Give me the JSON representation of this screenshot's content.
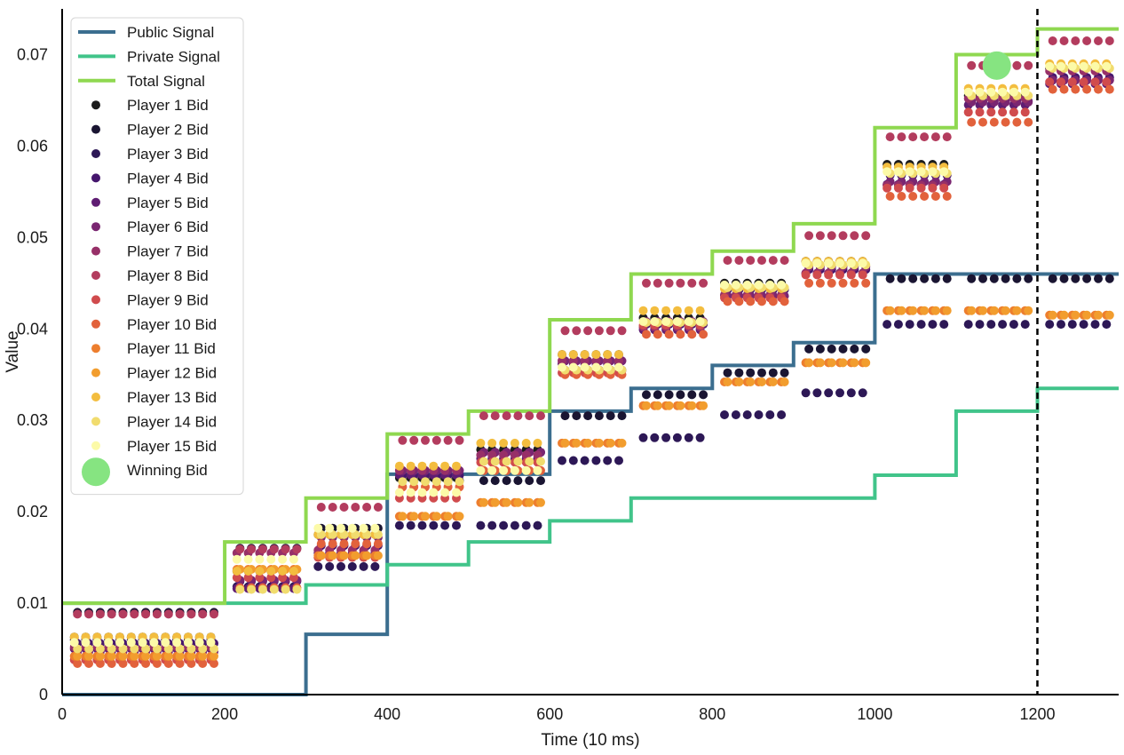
{
  "chart_data": {
    "type": "line",
    "title": "",
    "xlabel": "Time (10 ms)",
    "ylabel": "Value",
    "xlim": [
      0,
      1300
    ],
    "ylim": [
      0,
      0.075
    ],
    "xticks": [
      "0",
      "200",
      "400",
      "600",
      "800",
      "1000",
      "1200"
    ],
    "yticks": [
      "0",
      "0.01",
      "0.02",
      "0.03",
      "0.04",
      "0.05",
      "0.06",
      "0.07"
    ],
    "grid": false,
    "legend_position": "top-left",
    "vline": {
      "x": 1200,
      "style": "dashed",
      "color": "#000000"
    },
    "step_series": [
      {
        "name": "Public Signal",
        "color": "#3b6e8f",
        "x": [
          0,
          100,
          200,
          300,
          400,
          500,
          600,
          700,
          800,
          900,
          1000,
          1100,
          1200,
          1300
        ],
        "y": [
          0,
          0,
          0,
          0.0066,
          0.0241,
          0.0241,
          0.031,
          0.0335,
          0.036,
          0.0385,
          0.046,
          0.046,
          0.046,
          0.046
        ]
      },
      {
        "name": "Private Signal",
        "color": "#41c48a",
        "x": [
          0,
          100,
          200,
          300,
          400,
          500,
          600,
          700,
          800,
          900,
          1000,
          1100,
          1200,
          1300
        ],
        "y": [
          0.01,
          0.01,
          0.01,
          0.012,
          0.0142,
          0.0167,
          0.019,
          0.0215,
          0.0215,
          0.0215,
          0.024,
          0.031,
          0.0335,
          0.0335
        ]
      },
      {
        "name": "Total Signal",
        "color": "#8fd850",
        "x": [
          0,
          100,
          200,
          300,
          400,
          500,
          600,
          700,
          800,
          900,
          1000,
          1100,
          1200,
          1300
        ],
        "y": [
          0.01,
          0.01,
          0.0167,
          0.0215,
          0.0285,
          0.031,
          0.041,
          0.046,
          0.0485,
          0.0515,
          0.062,
          0.07,
          0.0728,
          0.0728
        ]
      }
    ],
    "scatter_series": [
      {
        "name": "Player 1 Bid",
        "color": "#1c1c1c"
      },
      {
        "name": "Player 2 Bid",
        "color": "#1a1532"
      },
      {
        "name": "Player 3 Bid",
        "color": "#2d1856"
      },
      {
        "name": "Player 4 Bid",
        "color": "#45166d"
      },
      {
        "name": "Player 5 Bid",
        "color": "#5f1d73"
      },
      {
        "name": "Player 6 Bid",
        "color": "#7a2671"
      },
      {
        "name": "Player 7 Bid",
        "color": "#973068"
      },
      {
        "name": "Player 8 Bid",
        "color": "#b33c5e"
      },
      {
        "name": "Player 9 Bid",
        "color": "#d04b4d"
      },
      {
        "name": "Player 10 Bid",
        "color": "#e2623c"
      },
      {
        "name": "Player 11 Bid",
        "color": "#ed7e2e"
      },
      {
        "name": "Player 12 Bid",
        "color": "#f29d2e"
      },
      {
        "name": "Player 13 Bid",
        "color": "#f3bd3f"
      },
      {
        "name": "Player 14 Bid",
        "color": "#f1dc6e"
      },
      {
        "name": "Player 15 Bid",
        "color": "#fcfaa8"
      }
    ],
    "bid_intervals": [
      {
        "x": [
          10,
          200
        ],
        "bids": [
          0.0063,
          0.009,
          0.006,
          0.0056,
          0.005,
          0.0047,
          0.0052,
          0.0088,
          0.0038,
          0.0034,
          0.0042,
          0.0042,
          0.0063,
          0.005,
          0.0057
        ]
      },
      {
        "x": [
          210,
          300
        ],
        "bids": [
          0.0135,
          0.016,
          0.0118,
          0.0124,
          0.0116,
          0.0125,
          0.0155,
          0.0159,
          0.0128,
          0.0117,
          0.0137,
          0.0137,
          0.0135,
          0.0115,
          0.0148
        ]
      },
      {
        "x": [
          310,
          400
        ],
        "bids": [
          0.0175,
          0.0182,
          0.014,
          0.0163,
          0.0155,
          0.0172,
          0.0158,
          0.0205,
          0.015,
          0.0165,
          0.0152,
          0.0152,
          0.0175,
          0.0175,
          0.0182
        ]
      },
      {
        "x": [
          410,
          500
        ],
        "bids": [
          0.0237,
          0.0234,
          0.0185,
          0.024,
          0.024,
          0.0245,
          0.0245,
          0.0278,
          0.0215,
          0.0227,
          0.0195,
          0.0195,
          0.025,
          0.0233,
          0.0221
        ]
      },
      {
        "x": [
          510,
          600
        ],
        "bids": [
          0.0268,
          0.0234,
          0.0185,
          0.0265,
          0.0258,
          0.0265,
          0.0262,
          0.0305,
          0.0254,
          0.0245,
          0.021,
          0.021,
          0.0275,
          0.0255,
          0.0245
        ]
      },
      {
        "x": [
          610,
          700
        ],
        "bids": [
          0.0372,
          0.0305,
          0.0256,
          0.0355,
          0.0362,
          0.0365,
          0.0365,
          0.0398,
          0.0352,
          0.035,
          0.0275,
          0.0275,
          0.0372,
          0.0355,
          0.0358
        ]
      },
      {
        "x": [
          710,
          800
        ],
        "bids": [
          0.0412,
          0.0328,
          0.0281,
          0.0405,
          0.0399,
          0.0408,
          0.0402,
          0.045,
          0.0404,
          0.0394,
          0.0316,
          0.0316,
          0.042,
          0.0407,
          0.0408
        ]
      },
      {
        "x": [
          810,
          900
        ],
        "bids": [
          0.045,
          0.0352,
          0.0306,
          0.0443,
          0.0437,
          0.0436,
          0.0437,
          0.0475,
          0.0434,
          0.043,
          0.0342,
          0.0342,
          0.0444,
          0.0445,
          0.0448
        ]
      },
      {
        "x": [
          910,
          1000
        ],
        "bids": [
          0.0474,
          0.0378,
          0.033,
          0.0465,
          0.0461,
          0.0468,
          0.0461,
          0.0502,
          0.0459,
          0.045,
          0.0363,
          0.0363,
          0.0474,
          0.047,
          0.0472
        ]
      },
      {
        "x": [
          1010,
          1100
        ],
        "bids": [
          0.058,
          0.0455,
          0.0405,
          0.0568,
          0.0558,
          0.0561,
          0.0557,
          0.061,
          0.0554,
          0.0545,
          0.042,
          0.042,
          0.0577,
          0.057,
          0.0572
        ]
      },
      {
        "x": [
          1110,
          1200
        ],
        "bids": [
          0.0655,
          0.0455,
          0.0405,
          0.0649,
          0.0645,
          0.0648,
          0.0652,
          0.0688,
          0.0637,
          0.0626,
          0.042,
          0.042,
          0.0663,
          0.0655,
          0.0659
        ]
      },
      {
        "x": [
          1210,
          1300
        ],
        "bids": [
          0.0685,
          0.0455,
          0.0405,
          0.0675,
          0.0668,
          0.0672,
          0.0682,
          0.0715,
          0.067,
          0.0662,
          0.0415,
          0.0415,
          0.069,
          0.0685,
          0.0687
        ]
      }
    ],
    "winning_bid": {
      "name": "Winning Bid",
      "x": 1150,
      "y": 0.0688,
      "color": "#86e481"
    }
  }
}
